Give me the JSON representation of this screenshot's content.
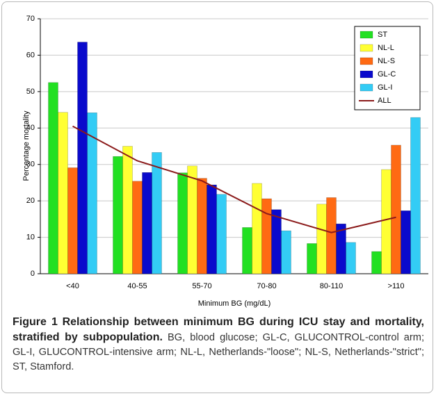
{
  "chart_data": {
    "type": "bar",
    "xlabel": "Minimum BG (mg/dL)",
    "ylabel": "Percentage mortality",
    "categories": [
      "<40",
      "40-55",
      "55-70",
      "70-80",
      "80-110",
      ">110"
    ],
    "series": [
      {
        "name": "ST",
        "color": "#22e022",
        "values": [
          52.5,
          32.2,
          27.7,
          12.7,
          8.3,
          6.1
        ]
      },
      {
        "name": "NL-L",
        "color": "#ffff33",
        "values": [
          44.3,
          35,
          29.6,
          24.8,
          19.1,
          28.6
        ]
      },
      {
        "name": "NL-S",
        "color": "#ff6a13",
        "values": [
          29.1,
          25.4,
          26.2,
          20.6,
          20.9,
          35.3
        ]
      },
      {
        "name": "GL-C",
        "color": "#0a0acc",
        "values": [
          63.6,
          27.8,
          24.4,
          17.6,
          13.7,
          17.3
        ]
      },
      {
        "name": "GL-I",
        "color": "#33ccf5",
        "values": [
          44.2,
          33.3,
          21.8,
          11.8,
          8.6,
          42.9
        ]
      },
      {
        "name": "ALL",
        "type": "line",
        "color": "#8b1a1a",
        "values": [
          40.5,
          31,
          25.5,
          16.5,
          11.3,
          15.5
        ]
      }
    ],
    "ylim": [
      0,
      70
    ],
    "yticks": [
      0,
      10,
      20,
      30,
      40,
      50,
      60,
      70
    ],
    "grid": true,
    "legend": "top-right"
  },
  "caption": {
    "label": "Figure 1",
    "title": "Relationship between minimum BG during ICU stay and mortality, stratified by subpopulation.",
    "text": "BG, blood glucose; GL-C, GLUCONTROL-control arm; GL-I, GLUCONTROL-intensive arm; NL-L, Netherlands-\"loose\"; NL-S, Netherlands-\"strict\"; ST, Stamford."
  }
}
